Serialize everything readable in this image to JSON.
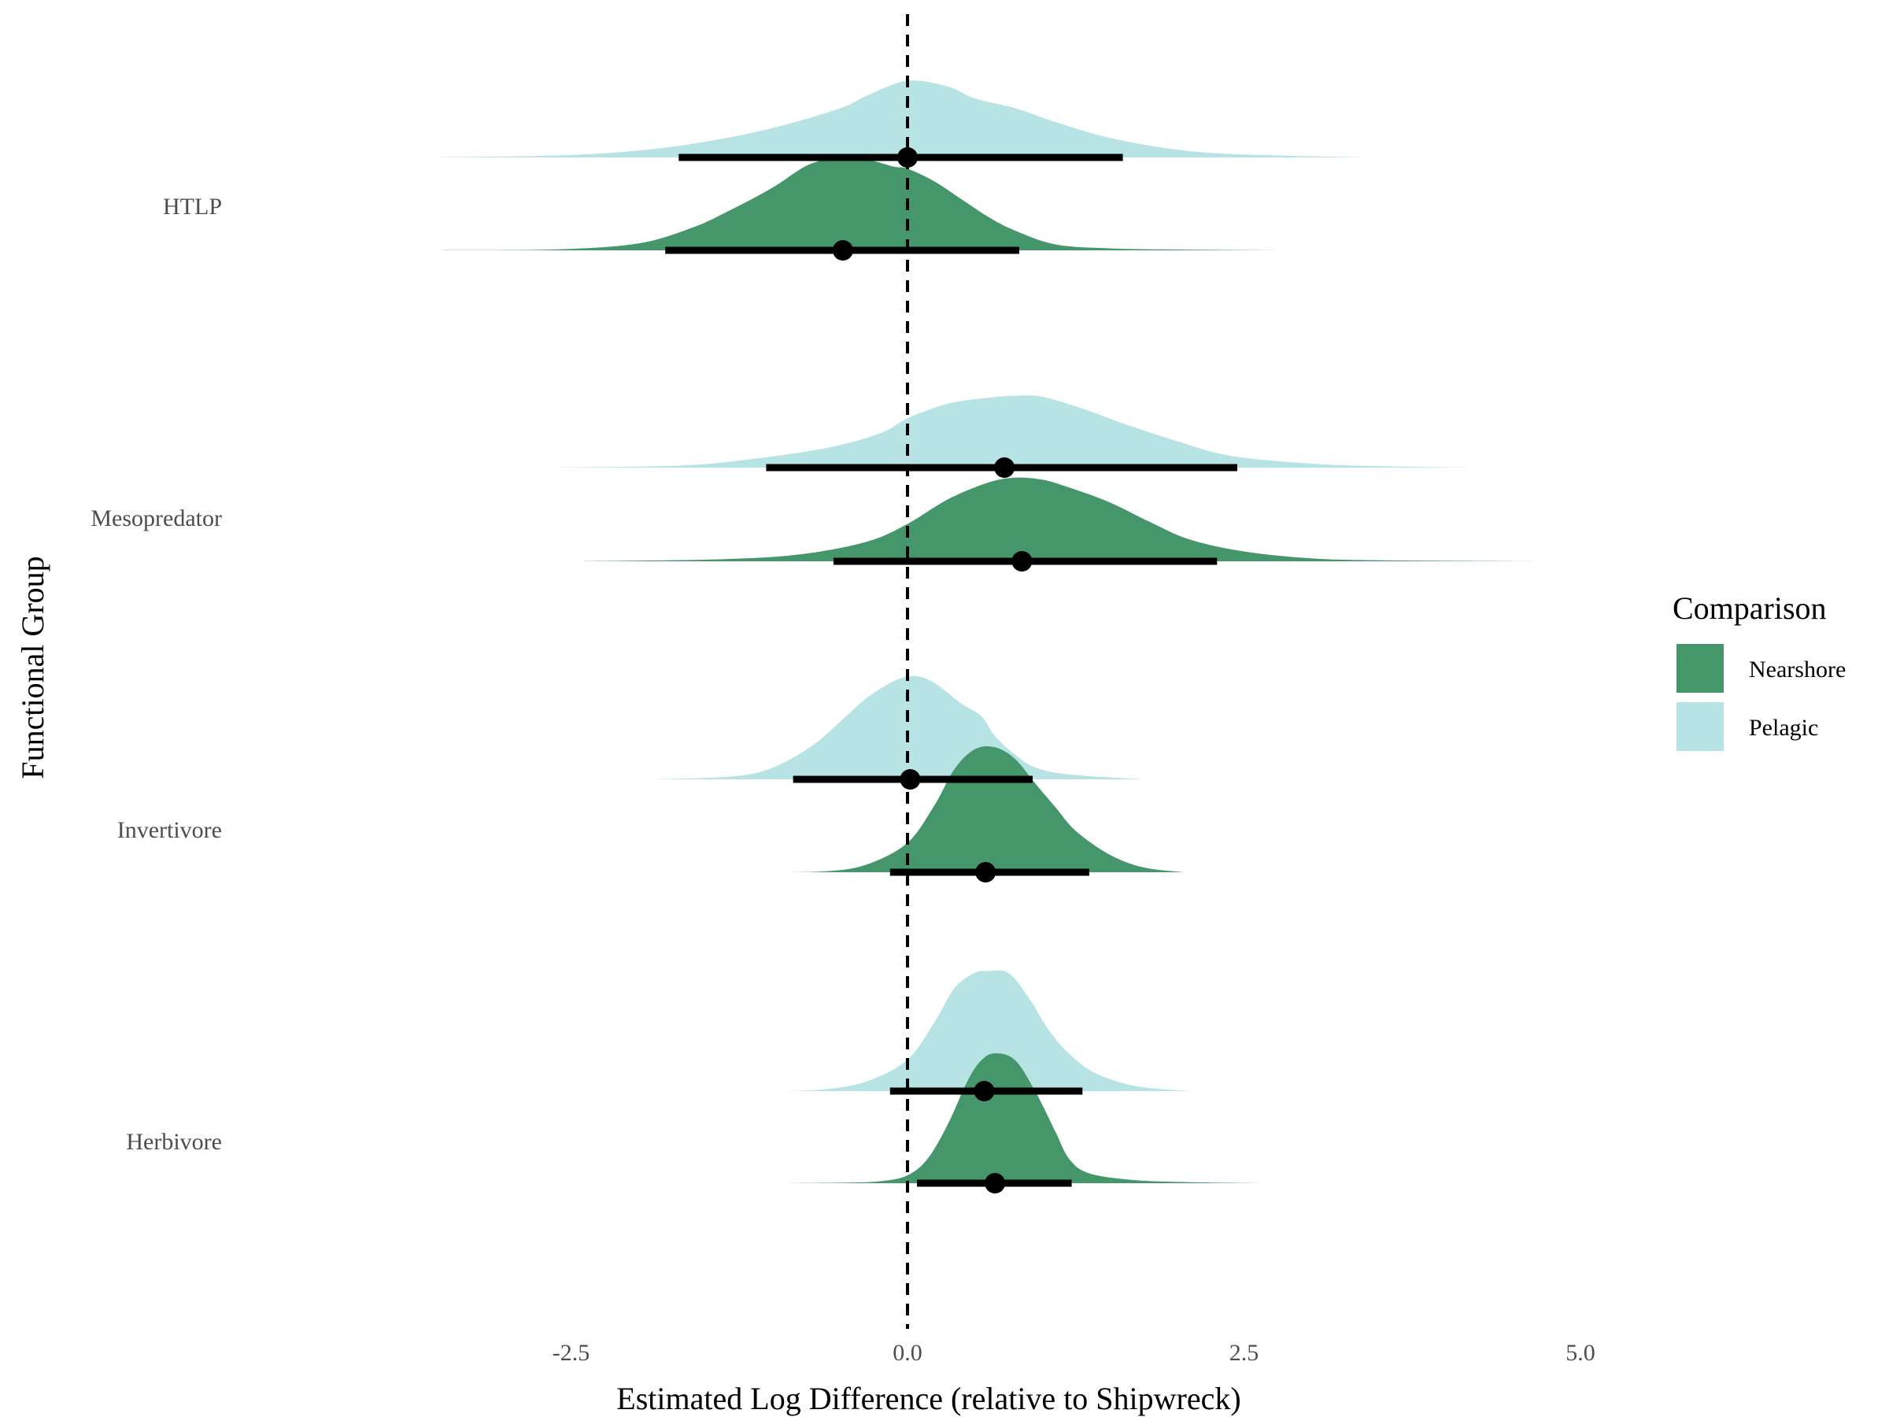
{
  "chart_data": {
    "type": "ridgeline",
    "title": "",
    "xlabel": "Estimated Log Difference (relative to Shipwreck)",
    "ylabel": "Functional Group",
    "xlim": [
      -3.6,
      5.6
    ],
    "x_ticks": [
      -2.5,
      0.0,
      2.5,
      5.0
    ],
    "x_tick_labels": [
      "-2.5",
      "0.0",
      "2.5",
      "5.0"
    ],
    "reference_line": {
      "x": 0.0,
      "style": "dashed"
    },
    "grid": false,
    "legend": {
      "title": "Comparison",
      "position": "right",
      "entries": [
        "Nearshore",
        "Pelagic"
      ]
    },
    "colors": {
      "Nearshore": "#45966a",
      "Pelagic": "#b7e3e4"
    },
    "categories": [
      "HTLP",
      "Mesopredator",
      "Invertivore",
      "Herbivore"
    ],
    "series": [
      {
        "group": "HTLP",
        "comparison": "Pelagic",
        "median": 0.0,
        "interval": [
          -1.7,
          1.6
        ],
        "range": [
          -3.5,
          3.45
        ],
        "density": [
          [
            -3.5,
            0.002
          ],
          [
            -2.6,
            0.02
          ],
          [
            -2.0,
            0.07
          ],
          [
            -1.5,
            0.16
          ],
          [
            -1.0,
            0.3
          ],
          [
            -0.5,
            0.5
          ],
          [
            -0.3,
            0.63
          ],
          [
            0.0,
            0.78
          ],
          [
            0.3,
            0.72
          ],
          [
            0.5,
            0.6
          ],
          [
            0.8,
            0.5
          ],
          [
            1.1,
            0.36
          ],
          [
            1.5,
            0.2
          ],
          [
            2.0,
            0.08
          ],
          [
            2.5,
            0.03
          ],
          [
            3.45,
            0.0
          ]
        ]
      },
      {
        "group": "HTLP",
        "comparison": "Nearshore",
        "median": -0.48,
        "interval": [
          -1.8,
          0.83
        ],
        "range": [
          -3.45,
          2.75
        ],
        "density": [
          [
            -3.45,
            0.002
          ],
          [
            -2.6,
            0.01
          ],
          [
            -2.0,
            0.07
          ],
          [
            -1.6,
            0.23
          ],
          [
            -1.3,
            0.42
          ],
          [
            -1.0,
            0.64
          ],
          [
            -0.75,
            0.86
          ],
          [
            -0.55,
            0.93
          ],
          [
            -0.3,
            0.92
          ],
          [
            -0.1,
            0.85
          ],
          [
            0.0,
            0.83
          ],
          [
            0.2,
            0.7
          ],
          [
            0.4,
            0.52
          ],
          [
            0.6,
            0.34
          ],
          [
            0.8,
            0.2
          ],
          [
            1.1,
            0.06
          ],
          [
            1.5,
            0.02
          ],
          [
            2.0,
            0.008
          ],
          [
            2.75,
            0.0
          ]
        ]
      },
      {
        "group": "Mesopredator",
        "comparison": "Pelagic",
        "median": 0.72,
        "interval": [
          -1.05,
          2.45
        ],
        "range": [
          -2.6,
          4.2
        ],
        "density": [
          [
            -2.6,
            0.002
          ],
          [
            -1.7,
            0.02
          ],
          [
            -1.2,
            0.08
          ],
          [
            -0.6,
            0.2
          ],
          [
            -0.2,
            0.35
          ],
          [
            0.0,
            0.5
          ],
          [
            0.3,
            0.65
          ],
          [
            0.6,
            0.71
          ],
          [
            0.8,
            0.73
          ],
          [
            1.0,
            0.72
          ],
          [
            1.3,
            0.6
          ],
          [
            1.6,
            0.45
          ],
          [
            2.0,
            0.27
          ],
          [
            2.4,
            0.12
          ],
          [
            3.0,
            0.04
          ],
          [
            3.5,
            0.015
          ],
          [
            4.2,
            0.0
          ]
        ]
      },
      {
        "group": "Mesopredator",
        "comparison": "Nearshore",
        "median": 0.85,
        "interval": [
          -0.55,
          2.3
        ],
        "range": [
          -2.4,
          4.7
        ],
        "density": [
          [
            -2.4,
            0.002
          ],
          [
            -1.4,
            0.02
          ],
          [
            -0.8,
            0.07
          ],
          [
            -0.3,
            0.2
          ],
          [
            0.0,
            0.38
          ],
          [
            0.3,
            0.63
          ],
          [
            0.6,
            0.8
          ],
          [
            0.8,
            0.85
          ],
          [
            1.0,
            0.83
          ],
          [
            1.2,
            0.75
          ],
          [
            1.5,
            0.6
          ],
          [
            1.8,
            0.4
          ],
          [
            2.1,
            0.22
          ],
          [
            2.5,
            0.1
          ],
          [
            3.0,
            0.03
          ],
          [
            3.5,
            0.01
          ],
          [
            4.7,
            0.0
          ]
        ]
      },
      {
        "group": "Invertivore",
        "comparison": "Pelagic",
        "median": 0.02,
        "interval": [
          -0.85,
          0.93
        ],
        "range": [
          -1.9,
          1.75
        ],
        "density": [
          [
            -1.9,
            0.0
          ],
          [
            -1.3,
            0.03
          ],
          [
            -1.0,
            0.12
          ],
          [
            -0.7,
            0.35
          ],
          [
            -0.45,
            0.65
          ],
          [
            -0.3,
            0.83
          ],
          [
            -0.1,
            1.0
          ],
          [
            0.05,
            1.05
          ],
          [
            0.2,
            0.98
          ],
          [
            0.4,
            0.77
          ],
          [
            0.55,
            0.64
          ],
          [
            0.65,
            0.44
          ],
          [
            0.8,
            0.25
          ],
          [
            0.95,
            0.12
          ],
          [
            1.2,
            0.05
          ],
          [
            1.75,
            0.0
          ]
        ]
      },
      {
        "group": "Invertivore",
        "comparison": "Nearshore",
        "median": 0.58,
        "interval": [
          -0.13,
          1.35
        ],
        "range": [
          -1.05,
          2.05
        ],
        "density": [
          [
            -1.05,
            0.0
          ],
          [
            -0.6,
            0.01
          ],
          [
            -0.3,
            0.08
          ],
          [
            0.0,
            0.3
          ],
          [
            0.2,
            0.68
          ],
          [
            0.35,
            1.05
          ],
          [
            0.5,
            1.25
          ],
          [
            0.65,
            1.27
          ],
          [
            0.8,
            1.15
          ],
          [
            0.95,
            0.9
          ],
          [
            1.1,
            0.66
          ],
          [
            1.25,
            0.42
          ],
          [
            1.5,
            0.18
          ],
          [
            1.75,
            0.05
          ],
          [
            2.05,
            0.0
          ]
        ]
      },
      {
        "group": "Herbivore",
        "comparison": "Pelagic",
        "median": 0.57,
        "interval": [
          -0.13,
          1.3
        ],
        "range": [
          -0.9,
          2.1
        ],
        "density": [
          [
            -0.9,
            0.0
          ],
          [
            -0.6,
            0.02
          ],
          [
            -0.3,
            0.1
          ],
          [
            0.0,
            0.32
          ],
          [
            0.2,
            0.7
          ],
          [
            0.35,
            1.05
          ],
          [
            0.5,
            1.2
          ],
          [
            0.6,
            1.22
          ],
          [
            0.75,
            1.2
          ],
          [
            0.9,
            0.95
          ],
          [
            1.05,
            0.62
          ],
          [
            1.2,
            0.38
          ],
          [
            1.4,
            0.18
          ],
          [
            1.7,
            0.05
          ],
          [
            2.1,
            0.0
          ]
        ]
      },
      {
        "group": "Herbivore",
        "comparison": "Nearshore",
        "median": 0.65,
        "interval": [
          0.07,
          1.22
        ],
        "range": [
          -1.05,
          2.6
        ],
        "density": [
          [
            -1.05,
            0.0
          ],
          [
            -0.5,
            0.005
          ],
          [
            -0.2,
            0.02
          ],
          [
            0.0,
            0.08
          ],
          [
            0.15,
            0.25
          ],
          [
            0.3,
            0.6
          ],
          [
            0.45,
            1.05
          ],
          [
            0.55,
            1.25
          ],
          [
            0.65,
            1.32
          ],
          [
            0.8,
            1.25
          ],
          [
            0.95,
            0.93
          ],
          [
            1.1,
            0.52
          ],
          [
            1.2,
            0.25
          ],
          [
            1.35,
            0.1
          ],
          [
            1.7,
            0.03
          ],
          [
            2.1,
            0.01
          ],
          [
            2.6,
            0.0
          ]
        ]
      }
    ]
  }
}
